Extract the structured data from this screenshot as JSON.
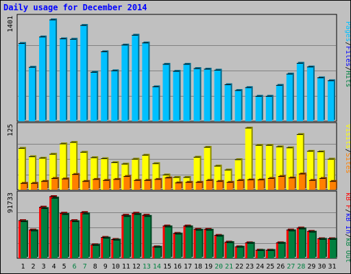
{
  "title": "Daily usage for December 2014",
  "colors": {
    "pages": "#00c0ff",
    "files": "#0000ff",
    "hits": "#008040",
    "sites": "#ff8000",
    "visits": "#ffff00",
    "kb_out": "#008040",
    "kb_in": "#0000ff",
    "kb_f": "#ff0000",
    "weekday": "#000000",
    "weekend": "#008040"
  },
  "chart_data": [
    {
      "type": "bar",
      "name": "hits-panel",
      "ytick": "1401",
      "ymax": 1401,
      "legend": [
        "Pages",
        "/",
        "Files",
        "/",
        "Hits"
      ],
      "x": [
        "1",
        "2",
        "3",
        "4",
        "5",
        "6",
        "7",
        "8",
        "9",
        "10",
        "11",
        "12",
        "13",
        "14",
        "15",
        "16",
        "17",
        "18",
        "19",
        "20",
        "21",
        "22",
        "23",
        "24",
        "25",
        "26",
        "27",
        "28",
        "29",
        "30",
        "31"
      ],
      "weekend": [
        false,
        false,
        false,
        false,
        false,
        true,
        true,
        false,
        false,
        false,
        false,
        false,
        true,
        true,
        false,
        false,
        false,
        false,
        false,
        true,
        true,
        false,
        false,
        false,
        false,
        false,
        true,
        true,
        false,
        false,
        false
      ],
      "series": [
        {
          "name": "Hits",
          "values": [
            1075,
            746,
            1165,
            1401,
            1139,
            1133,
            1324,
            677,
            960,
            697,
            1053,
            1189,
            1082,
            476,
            787,
            690,
            787,
            728,
            720,
            706,
            505,
            425,
            465,
            345,
            345,
            496,
            652,
            801,
            750,
            600,
            560
          ]
        },
        {
          "name": "Files",
          "values": [
            1055,
            735,
            1150,
            1385,
            1125,
            1120,
            1310,
            665,
            945,
            685,
            1040,
            1175,
            1070,
            465,
            775,
            678,
            775,
            717,
            708,
            695,
            495,
            415,
            455,
            335,
            335,
            485,
            640,
            790,
            740,
            590,
            550
          ]
        }
      ]
    },
    {
      "type": "bar",
      "name": "visits-panel",
      "ytick": "125",
      "ymax": 125,
      "legend": [
        "Visits",
        "/",
        "Sites"
      ],
      "x": [
        "1",
        "2",
        "3",
        "4",
        "5",
        "6",
        "7",
        "8",
        "9",
        "10",
        "11",
        "12",
        "13",
        "14",
        "15",
        "16",
        "17",
        "18",
        "19",
        "20",
        "21",
        "22",
        "23",
        "24",
        "25",
        "26",
        "27",
        "28",
        "29",
        "30",
        "31"
      ],
      "series": [
        {
          "name": "Visits",
          "values": [
            84,
            67,
            64,
            72,
            93,
            96,
            76,
            65,
            63,
            55,
            52,
            62,
            70,
            53,
            30,
            25,
            25,
            66,
            86,
            48,
            40,
            61,
            125,
            90,
            90,
            87,
            85,
            112,
            78,
            77,
            62
          ]
        },
        {
          "name": "Sites",
          "values": [
            13,
            13,
            17,
            23,
            22,
            31,
            17,
            21,
            19,
            21,
            27,
            19,
            19,
            21,
            24,
            14,
            15,
            15,
            19,
            17,
            15,
            19,
            20,
            20,
            23,
            27,
            24,
            32,
            19,
            23,
            17
          ]
        }
      ]
    },
    {
      "type": "bar",
      "name": "kbytes-panel",
      "ytick": "91733",
      "ymax": 91733,
      "legend": [
        "kB F",
        "/",
        "kB In",
        "/",
        "kB Out"
      ],
      "x": [
        "1",
        "2",
        "3",
        "4",
        "5",
        "6",
        "7",
        "8",
        "9",
        "10",
        "11",
        "12",
        "13",
        "14",
        "15",
        "16",
        "17",
        "18",
        "19",
        "20",
        "21",
        "22",
        "23",
        "24",
        "25",
        "26",
        "27",
        "28",
        "29",
        "30",
        "31"
      ],
      "series": [
        {
          "name": "kB F",
          "values": [
            56000,
            42000,
            76000,
            91733,
            67000,
            56000,
            68000,
            20000,
            31000,
            28000,
            64000,
            67000,
            64000,
            17000,
            48000,
            37000,
            48000,
            43000,
            43000,
            34000,
            24000,
            17000,
            23000,
            12000,
            12000,
            23000,
            42000,
            45000,
            40000,
            29000,
            29000
          ]
        },
        {
          "name": "kB Out",
          "values": [
            54500,
            40800,
            74000,
            89500,
            65200,
            54500,
            66000,
            19200,
            30000,
            27100,
            62300,
            65200,
            62300,
            16400,
            46700,
            36000,
            46700,
            41800,
            41800,
            33000,
            23300,
            16500,
            22300,
            11600,
            11600,
            22300,
            40800,
            43800,
            38900,
            28200,
            28200
          ]
        }
      ]
    }
  ]
}
